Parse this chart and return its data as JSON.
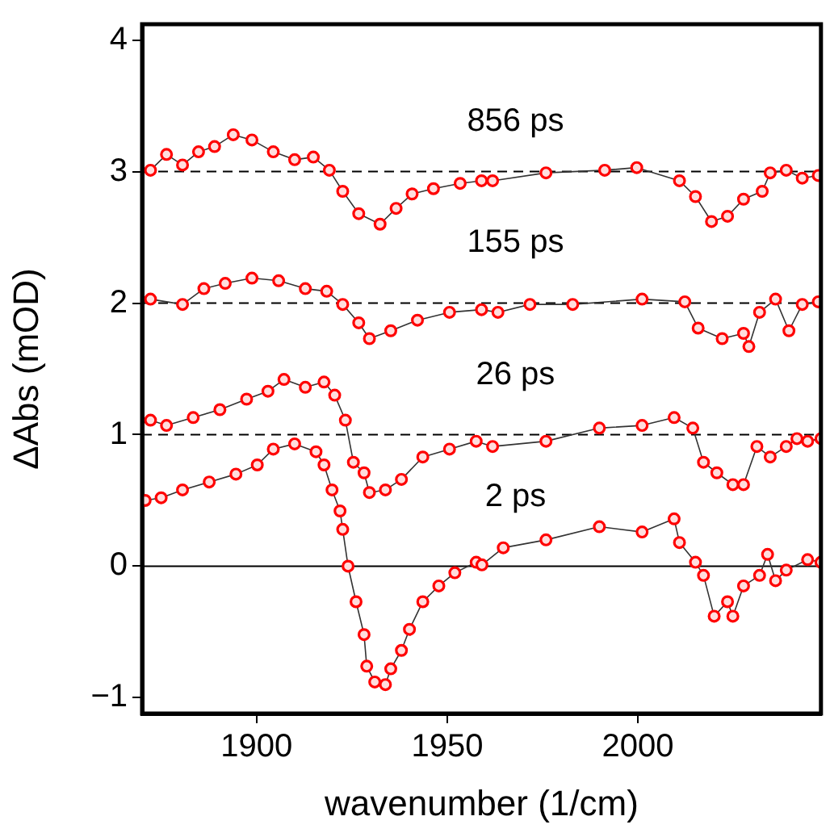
{
  "chart_data": {
    "type": "line",
    "xlabel": "wavenumber (1/cm)",
    "ylabel": "ΔAbs (mOD)",
    "xlim": [
      1870,
      2048
    ],
    "xticks": [
      1900,
      1950,
      2000
    ],
    "ylim": [
      -1.12,
      4.12
    ],
    "yticks": [
      {
        "value": -1,
        "label": "−1"
      },
      0,
      1,
      2,
      3,
      4
    ],
    "grid": false,
    "legend": false,
    "marker": "circle",
    "line_style": "solid",
    "ref_lines": [
      {
        "axis": "y",
        "value": 0,
        "color": "#000000",
        "line_style": "solid"
      },
      {
        "axis": "y",
        "value": 1,
        "color": "#000000",
        "line_style": "dashed"
      },
      {
        "axis": "y",
        "value": 2,
        "color": "#000000",
        "line_style": "dashed"
      },
      {
        "axis": "y",
        "value": 3,
        "color": "#000000",
        "line_style": "dashed"
      }
    ],
    "series": [
      {
        "name": "2 ps",
        "color": "#ff0000",
        "x": [
          1870.8,
          1875,
          1880.6,
          1887.6,
          1894.6,
          1900.2,
          1904.4,
          1910,
          1915.6,
          1917.7,
          1919.8,
          1921.9,
          1922.6,
          1924,
          1926.1,
          1928.2,
          1928.9,
          1931,
          1933.8,
          1935.2,
          1938,
          1940.1,
          1943.6,
          1947.8,
          1952,
          1957.6,
          1959.1,
          1964.7,
          1975.9,
          1989.9,
          2001.1,
          2009.5,
          2010.9,
          2015.1,
          2017.2,
          2020,
          2023.5,
          2024.9,
          2027.7,
          2031.9,
          2034,
          2036.1,
          2038.9,
          2044.5,
          2048
        ],
        "values": [
          0.5,
          0.52,
          0.58,
          0.64,
          0.7,
          0.77,
          0.89,
          0.93,
          0.87,
          0.77,
          0.58,
          0.42,
          0.28,
          0,
          -0.27,
          -0.52,
          -0.76,
          -0.88,
          -0.9,
          -0.78,
          -0.64,
          -0.48,
          -0.27,
          -0.15,
          -0.05,
          0.03,
          0.01,
          0.14,
          0.2,
          0.3,
          0.26,
          0.36,
          0.18,
          0.03,
          -0.07,
          -0.38,
          -0.27,
          -0.38,
          -0.15,
          -0.07,
          0.09,
          -0.11,
          -0.03,
          0.05,
          0.03
        ]
      },
      {
        "name": "26 ps",
        "color": "#ff0000",
        "x": [
          1872.2,
          1876.4,
          1883.4,
          1890.4,
          1897.4,
          1903,
          1907.2,
          1912.8,
          1917.7,
          1920.5,
          1923.3,
          1925.4,
          1928.2,
          1929.6,
          1933.8,
          1938,
          1943.6,
          1950.6,
          1957.6,
          1961.9,
          1975.9,
          1989.9,
          2001.1,
          2009.5,
          2014.4,
          2017.2,
          2020.7,
          2024.9,
          2027.7,
          2031.2,
          2034.7,
          2038.9,
          2041.7,
          2044.5,
          2048
        ],
        "values": [
          1.11,
          1.07,
          1.13,
          1.19,
          1.27,
          1.33,
          1.42,
          1.36,
          1.4,
          1.3,
          1.11,
          0.79,
          0.71,
          0.56,
          0.58,
          0.66,
          0.83,
          0.89,
          0.95,
          0.91,
          0.95,
          1.05,
          1.07,
          1.13,
          1.05,
          0.79,
          0.71,
          0.62,
          0.62,
          0.91,
          0.83,
          0.91,
          0.97,
          0.95,
          0.97
        ]
      },
      {
        "name": "155 ps",
        "color": "#ff0000",
        "x": [
          1872.2,
          1880.6,
          1886.2,
          1891.8,
          1898.8,
          1905.8,
          1912.8,
          1918.4,
          1922.6,
          1926.8,
          1929.6,
          1935.2,
          1942.2,
          1950.6,
          1959,
          1963.3,
          1971.7,
          1982.9,
          2001.1,
          2012.3,
          2015.8,
          2022.1,
          2027.7,
          2029.1,
          2031.9,
          2036.1,
          2039.6,
          2043.1,
          2047.3
        ],
        "values": [
          2.03,
          1.99,
          2.11,
          2.15,
          2.19,
          2.17,
          2.11,
          2.09,
          1.99,
          1.85,
          1.73,
          1.79,
          1.87,
          1.93,
          1.95,
          1.93,
          1.99,
          1.99,
          2.03,
          2.01,
          1.81,
          1.73,
          1.77,
          1.67,
          1.93,
          2.03,
          1.79,
          1.99,
          2.01
        ]
      },
      {
        "name": "856 ps",
        "color": "#ff0000",
        "x": [
          1872.2,
          1876.4,
          1880.6,
          1884.8,
          1889,
          1893.9,
          1898.8,
          1904.4,
          1910,
          1914.9,
          1919.1,
          1922.6,
          1926.8,
          1932.4,
          1936.6,
          1940.8,
          1946.4,
          1953.4,
          1959,
          1961.9,
          1975.9,
          1991.3,
          1999.7,
          2010.9,
          2015.1,
          2019.3,
          2023.5,
          2027.7,
          2032.6,
          2034.7,
          2038.9,
          2043.1,
          2047.3
        ],
        "values": [
          3.01,
          3.13,
          3.05,
          3.15,
          3.19,
          3.28,
          3.24,
          3.15,
          3.09,
          3.11,
          3.01,
          2.85,
          2.68,
          2.6,
          2.72,
          2.83,
          2.87,
          2.91,
          2.93,
          2.93,
          2.99,
          3.01,
          3.03,
          2.93,
          2.81,
          2.62,
          2.66,
          2.79,
          2.85,
          2.99,
          3.01,
          2.95,
          2.97
        ]
      }
    ]
  }
}
